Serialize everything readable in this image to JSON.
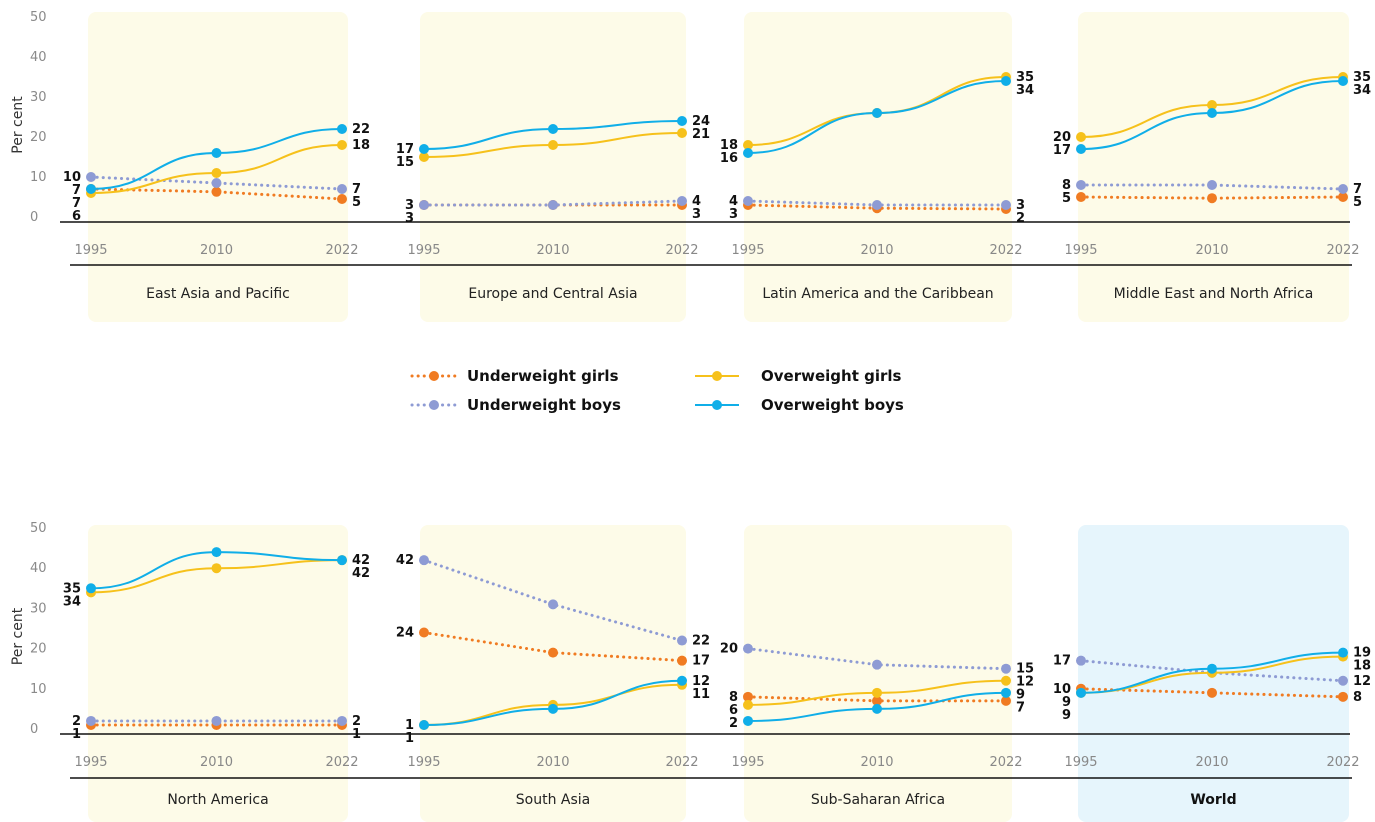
{
  "colors": {
    "underweight_girls": "#f07b22",
    "underweight_boys": "#8e9bd4",
    "overweight_girls": "#f6c11b",
    "overweight_boys": "#10aee8",
    "panel_default": "#fdfbe8",
    "panel_world": "#e6f5fc"
  },
  "chart_data": {
    "type": "line",
    "ylabel": "Per cent",
    "y_ticks": [
      "0",
      "10",
      "20",
      "30",
      "40",
      "50"
    ],
    "ylim": [
      0,
      50
    ],
    "x": [
      "1995",
      "2010",
      "2022"
    ],
    "legend": [
      {
        "key": "underweight_girls",
        "name": "Underweight girls",
        "style": "dotted"
      },
      {
        "key": "underweight_boys",
        "name": "Underweight boys",
        "style": "dotted"
      },
      {
        "key": "overweight_girls",
        "name": "Overweight girls",
        "style": "solid"
      },
      {
        "key": "overweight_boys",
        "name": "Overweight boys",
        "style": "solid"
      }
    ],
    "panels": [
      {
        "name": "East Asia and Pacific",
        "series": {
          "underweight_girls": {
            "values": [
              7,
              6.3,
              4.5
            ],
            "labels": [
              "7",
              "",
              "5"
            ]
          },
          "underweight_boys": {
            "values": [
              10,
              8.5,
              7
            ],
            "labels": [
              "10",
              "",
              "7"
            ]
          },
          "overweight_girls": {
            "values": [
              6,
              11,
              18
            ],
            "labels": [
              "6",
              "",
              "18"
            ]
          },
          "overweight_boys": {
            "values": [
              7,
              16,
              22
            ],
            "labels": [
              "7",
              "",
              "22"
            ]
          }
        }
      },
      {
        "name": "Europe and Central Asia",
        "series": {
          "underweight_girls": {
            "values": [
              3,
              3,
              3
            ],
            "labels": [
              "3",
              "",
              "3"
            ]
          },
          "underweight_boys": {
            "values": [
              3,
              3,
              4
            ],
            "labels": [
              "3",
              "",
              "4"
            ]
          },
          "overweight_girls": {
            "values": [
              15,
              18,
              21
            ],
            "labels": [
              "15",
              "",
              "21"
            ]
          },
          "overweight_boys": {
            "values": [
              17,
              22,
              24
            ],
            "labels": [
              "17",
              "",
              "24"
            ]
          }
        }
      },
      {
        "name": "Latin America and the Caribbean",
        "series": {
          "underweight_girls": {
            "values": [
              3,
              2.2,
              2
            ],
            "labels": [
              "3",
              "",
              "2"
            ]
          },
          "underweight_boys": {
            "values": [
              4,
              3,
              3
            ],
            "labels": [
              "4",
              "",
              "3"
            ]
          },
          "overweight_girls": {
            "values": [
              18,
              26,
              35
            ],
            "labels": [
              "18",
              "",
              "35"
            ]
          },
          "overweight_boys": {
            "values": [
              16,
              26,
              34
            ],
            "labels": [
              "16",
              "",
              "34"
            ]
          }
        }
      },
      {
        "name": "Middle East and North Africa",
        "series": {
          "underweight_girls": {
            "values": [
              5,
              4.7,
              5
            ],
            "labels": [
              "5",
              "",
              "5"
            ]
          },
          "underweight_boys": {
            "values": [
              8,
              8,
              7
            ],
            "labels": [
              "8",
              "",
              "7"
            ]
          },
          "overweight_girls": {
            "values": [
              20,
              28,
              35
            ],
            "labels": [
              "20",
              "",
              "35"
            ]
          },
          "overweight_boys": {
            "values": [
              17,
              26,
              34
            ],
            "labels": [
              "17",
              "",
              "34"
            ]
          }
        }
      },
      {
        "name": "North America",
        "series": {
          "underweight_girls": {
            "values": [
              1,
              1,
              1
            ],
            "labels": [
              "1",
              "",
              "1"
            ]
          },
          "underweight_boys": {
            "values": [
              2,
              2,
              2
            ],
            "labels": [
              "2",
              "",
              "2"
            ]
          },
          "overweight_girls": {
            "values": [
              34,
              40,
              42
            ],
            "labels": [
              "34",
              "",
              "42"
            ]
          },
          "overweight_boys": {
            "values": [
              35,
              44,
              42
            ],
            "labels": [
              "35",
              "",
              "42"
            ]
          }
        }
      },
      {
        "name": "South Asia",
        "series": {
          "underweight_girls": {
            "values": [
              24,
              19,
              17
            ],
            "labels": [
              "24",
              "",
              "17"
            ]
          },
          "underweight_boys": {
            "values": [
              42,
              31,
              22
            ],
            "labels": [
              "42",
              "",
              "22"
            ]
          },
          "overweight_girls": {
            "values": [
              1,
              6,
              11
            ],
            "labels": [
              "1",
              "",
              "11"
            ]
          },
          "overweight_boys": {
            "values": [
              1,
              5,
              12
            ],
            "labels": [
              "1",
              "",
              "12"
            ]
          }
        }
      },
      {
        "name": "Sub-Saharan Africa",
        "series": {
          "underweight_girls": {
            "values": [
              8,
              7,
              7
            ],
            "labels": [
              "8",
              "",
              "7"
            ]
          },
          "underweight_boys": {
            "values": [
              20,
              16,
              15
            ],
            "labels": [
              "20",
              "",
              "15"
            ]
          },
          "overweight_girls": {
            "values": [
              6,
              9,
              12
            ],
            "labels": [
              "6",
              "",
              "12"
            ]
          },
          "overweight_boys": {
            "values": [
              2,
              5,
              9
            ],
            "labels": [
              "2",
              "",
              "9"
            ]
          }
        }
      },
      {
        "name": "World",
        "highlight": true,
        "series": {
          "underweight_girls": {
            "values": [
              10,
              9,
              8
            ],
            "labels": [
              "10",
              "",
              "8"
            ]
          },
          "underweight_boys": {
            "values": [
              17,
              14,
              12
            ],
            "labels": [
              "17",
              "",
              "12"
            ]
          },
          "overweight_girls": {
            "values": [
              9,
              14,
              18
            ],
            "labels": [
              "9",
              "",
              "18"
            ]
          },
          "overweight_boys": {
            "values": [
              9,
              15,
              19
            ],
            "labels": [
              "9",
              "",
              "19"
            ]
          }
        }
      }
    ]
  }
}
